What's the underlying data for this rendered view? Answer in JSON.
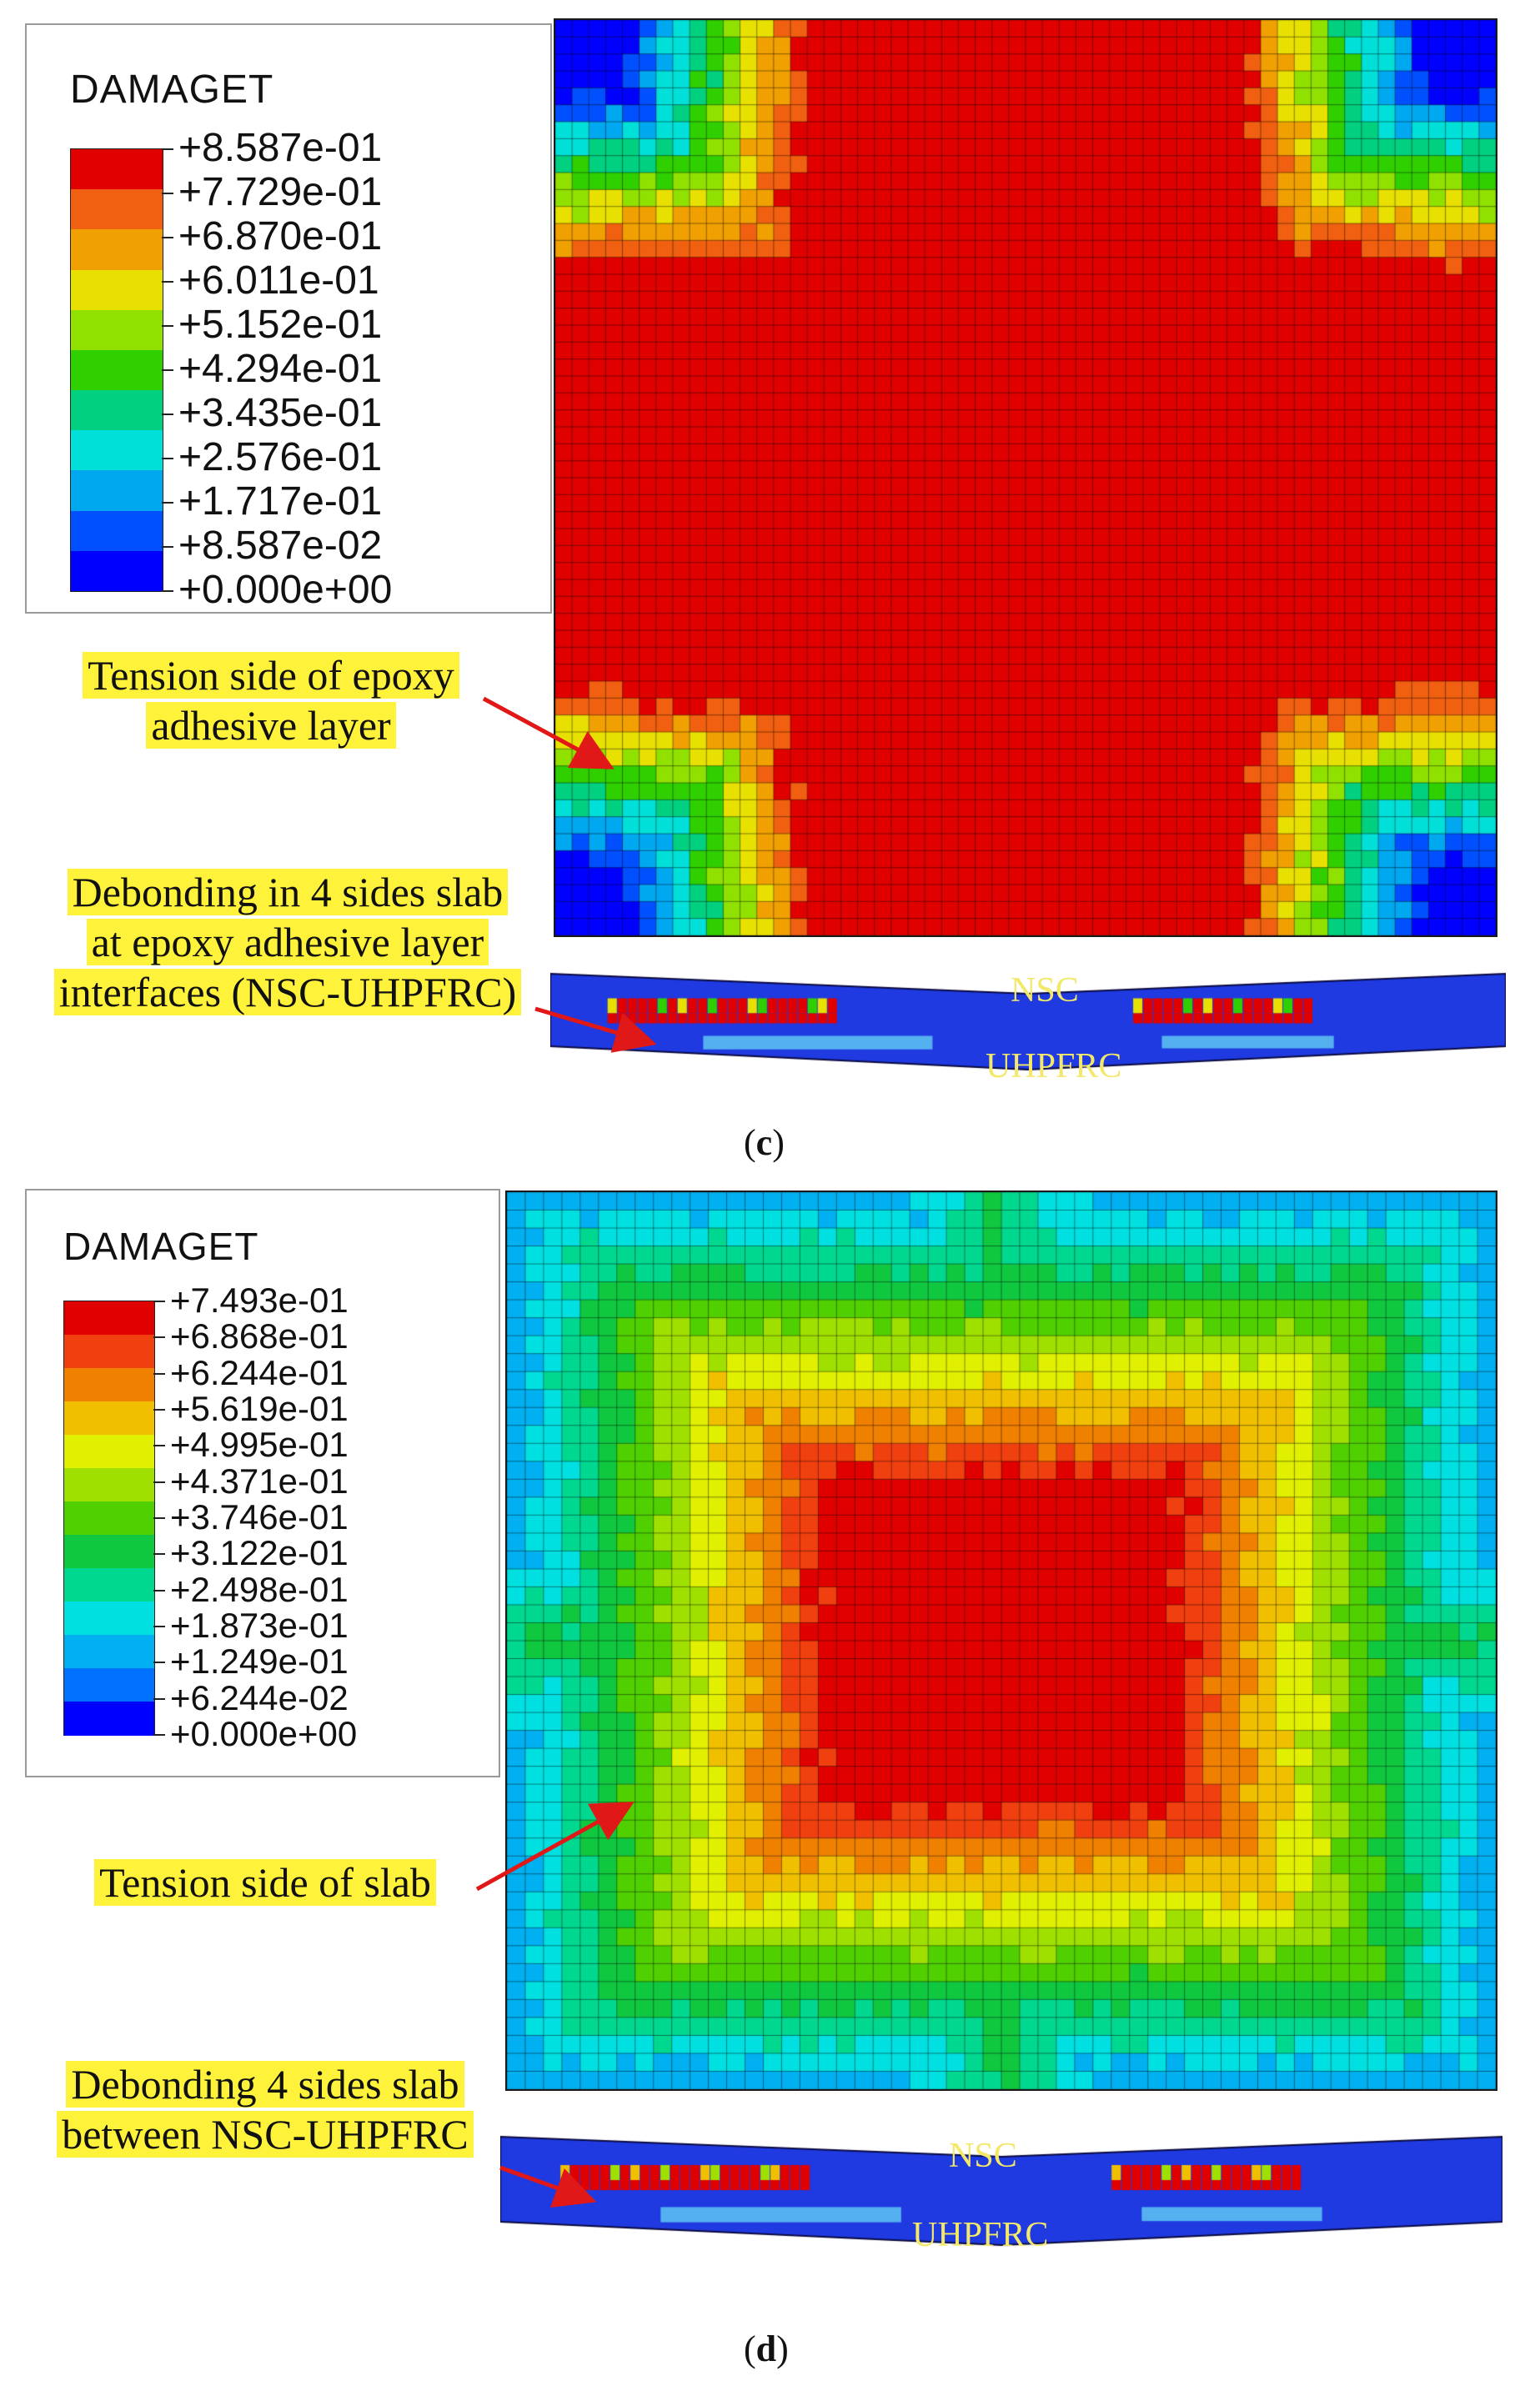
{
  "panels": {
    "c": {
      "legend": {
        "title": "DAMAGET",
        "values": [
          "+8.587e-01",
          "+7.729e-01",
          "+6.870e-01",
          "+6.011e-01",
          "+5.152e-01",
          "+4.294e-01",
          "+3.435e-01",
          "+2.576e-01",
          "+1.717e-01",
          "+8.587e-02",
          "+0.000e+00"
        ],
        "colors": [
          "#e00000",
          "#f06010",
          "#f0a000",
          "#e8e000",
          "#90e000",
          "#30d000",
          "#00d080",
          "#00e0d8",
          "#00a8f0",
          "#0050ff",
          "#0000ff"
        ]
      },
      "callout_top": "Tension side of epoxy adhesive layer",
      "callout_bottom": "Debonding in 4 sides slab at epoxy adhesive layer interfaces (NSC-UHPFRC)",
      "label_nsc": "NSC",
      "label_uhpfrc": "UHPFRC",
      "panel_label_open": "(",
      "panel_label_letter": "c",
      "panel_label_close": ")"
    },
    "d": {
      "legend": {
        "title": "DAMAGET",
        "values": [
          "+7.493e-01",
          "+6.868e-01",
          "+6.244e-01",
          "+5.619e-01",
          "+4.995e-01",
          "+4.371e-01",
          "+3.746e-01",
          "+3.122e-01",
          "+2.498e-01",
          "+1.873e-01",
          "+1.249e-01",
          "+6.244e-02",
          "+0.000e+00"
        ],
        "colors": [
          "#e00000",
          "#f04010",
          "#f08000",
          "#f0c000",
          "#e0f000",
          "#a0e000",
          "#50d000",
          "#10c840",
          "#00d890",
          "#00e0e0",
          "#00b0f0",
          "#0070ff",
          "#0000ff"
        ]
      },
      "callout_top": "Tension side of slab",
      "callout_bottom": "Debonding 4 sides slab between NSC-UHPFRC",
      "label_nsc": "NSC",
      "label_uhpfrc": "UHPFRC",
      "panel_label_open": "(",
      "panel_label_letter": "d",
      "panel_label_close": ")"
    }
  }
}
